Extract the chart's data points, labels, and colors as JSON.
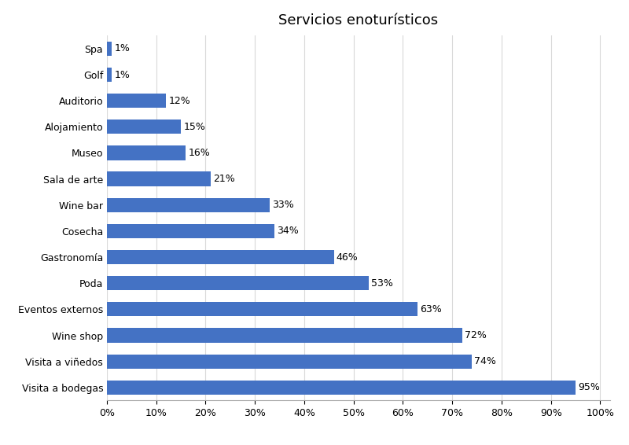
{
  "title": "Servicios enoturísticos",
  "categories": [
    "Visita a bodegas",
    "Visita a viñedos",
    "Wine shop",
    "Eventos externos",
    "Poda",
    "Gastronomía",
    "Cosecha",
    "Wine bar",
    "Sala de arte",
    "Museo",
    "Alojamiento",
    "Auditorio",
    "Golf",
    "Spa"
  ],
  "values": [
    95,
    74,
    72,
    63,
    53,
    46,
    34,
    33,
    21,
    16,
    15,
    12,
    1,
    1
  ],
  "bar_color": "#4472C4",
  "background_color": "#ffffff",
  "label_color": "#000000",
  "title_fontsize": 13,
  "label_fontsize": 9,
  "tick_fontsize": 9,
  "xlim": [
    0,
    100
  ],
  "xticks": [
    0,
    10,
    20,
    30,
    40,
    50,
    60,
    70,
    80,
    90,
    100
  ],
  "grid_color": "#d9d9d9"
}
